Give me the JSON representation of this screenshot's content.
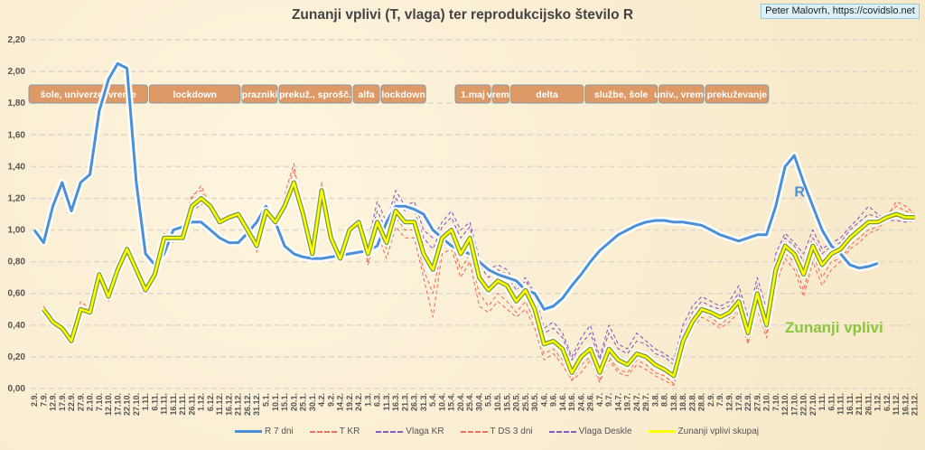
{
  "credit": "Peter Malovrh, https://covidslo.net",
  "chart_data": {
    "type": "line",
    "title": "Zunanji vplivi (T, vlaga) ter reprodukcijsko število R",
    "ylim": [
      0,
      2.2
    ],
    "yticks": [
      "0,00",
      "0,20",
      "0,40",
      "0,60",
      "0,80",
      "1,00",
      "1,20",
      "1,40",
      "1,60",
      "1,80",
      "2,00",
      "2,20"
    ],
    "grid": true,
    "legend_placement": "bottom",
    "categories": [
      "2.9.",
      "7.9.",
      "12.9.",
      "17.9.",
      "22.9.",
      "27.9.",
      "2.10.",
      "7.10.",
      "12.10.",
      "17.10.",
      "22.10.",
      "27.10.",
      "1.11.",
      "6.11.",
      "11.11.",
      "16.11.",
      "21.11.",
      "26.11.",
      "1.12.",
      "6.12.",
      "11.12.",
      "16.12.",
      "21.12.",
      "26.12.",
      "31.12.",
      "5.1.",
      "10.1.",
      "15.1.",
      "20.1.",
      "25.1.",
      "30.1.",
      "4.2.",
      "9.2.",
      "14.2.",
      "19.2.",
      "24.2.",
      "1.3.",
      "6.3.",
      "11.3.",
      "16.3.",
      "21.3.",
      "26.3.",
      "31.3.",
      "5.4.",
      "10.4.",
      "15.4.",
      "20.4.",
      "25.4.",
      "30.4.",
      "5.5.",
      "10.5.",
      "15.5.",
      "20.5.",
      "25.5.",
      "30.5.",
      "4.6.",
      "9.6.",
      "14.6.",
      "19.6.",
      "24.6.",
      "29.6.",
      "4.7.",
      "9.7.",
      "14.7.",
      "19.7.",
      "24.7.",
      "29.7.",
      "3.8.",
      "8.8.",
      "13.8.",
      "18.8.",
      "23.8.",
      "28.8.",
      "2.9.",
      "7.9.",
      "12.9.",
      "17.9.",
      "22.9.",
      "27.9.",
      "2.10.",
      "7.10.",
      "12.10.",
      "17.10.",
      "22.10.",
      "27.10.",
      "1.11.",
      "6.11.",
      "11.11.",
      "16.11.",
      "21.11.",
      "26.11.",
      "1.12.",
      "6.12.",
      "11.12.",
      "16.12.",
      "21.12."
    ],
    "series": [
      {
        "name": "R 7 dni",
        "color": "#4a90d9",
        "style": "solid",
        "values": [
          1.0,
          0.92,
          1.15,
          1.3,
          1.12,
          1.3,
          1.35,
          1.75,
          1.95,
          2.05,
          2.02,
          1.3,
          0.85,
          0.78,
          0.85,
          1.0,
          1.02,
          1.05,
          1.05,
          1.0,
          0.95,
          0.92,
          0.92,
          0.98,
          1.05,
          1.15,
          1.05,
          0.9,
          0.85,
          0.83,
          0.82,
          0.82,
          0.83,
          0.84,
          0.85,
          0.86,
          0.87,
          0.9,
          1.05,
          1.15,
          1.15,
          1.13,
          1.1,
          1.0,
          0.95,
          0.9,
          0.87,
          0.85,
          0.8,
          0.75,
          0.72,
          0.7,
          0.68,
          0.62,
          0.6,
          0.5,
          0.52,
          0.57,
          0.65,
          0.72,
          0.8,
          0.87,
          0.92,
          0.97,
          1.0,
          1.03,
          1.05,
          1.06,
          1.06,
          1.05,
          1.05,
          1.04,
          1.03,
          1.0,
          0.97,
          0.95,
          0.93,
          0.95,
          0.97,
          0.97,
          1.15,
          1.4,
          1.47,
          1.3,
          1.15,
          1.0,
          0.9,
          0.85,
          0.78,
          0.76,
          0.77,
          0.79,
          null,
          null,
          null,
          null
        ]
      },
      {
        "name": "T KR",
        "color": "#f07060",
        "style": "dash",
        "values": [
          null,
          0.52,
          0.4,
          0.35,
          0.28,
          0.55,
          0.5,
          0.75,
          0.55,
          0.78,
          0.9,
          0.72,
          0.6,
          0.75,
          0.98,
          0.92,
          1.0,
          1.22,
          1.25,
          1.12,
          1.02,
          1.1,
          1.12,
          0.98,
          0.88,
          1.15,
          1.02,
          1.2,
          1.38,
          1.05,
          0.82,
          1.28,
          0.9,
          0.8,
          1.02,
          1.08,
          0.8,
          1.02,
          0.88,
          1.08,
          1.0,
          1.0,
          0.75,
          0.6,
          0.9,
          0.92,
          0.75,
          0.85,
          0.6,
          0.52,
          0.6,
          0.55,
          0.48,
          0.55,
          0.42,
          0.22,
          0.25,
          0.18,
          0.05,
          0.15,
          0.2,
          0.05,
          0.2,
          0.12,
          0.1,
          0.18,
          0.15,
          0.1,
          0.08,
          0.03,
          0.28,
          0.4,
          0.48,
          0.45,
          0.4,
          0.45,
          0.5,
          0.3,
          0.55,
          0.35,
          0.7,
          0.85,
          0.8,
          0.62,
          0.85,
          0.7,
          0.8,
          0.82,
          0.9,
          0.95,
          1.0,
          1.02,
          1.1,
          1.15,
          1.12,
          1.1
        ]
      },
      {
        "name": "Vlaga KR",
        "color": "#8a5cc2",
        "style": "dash",
        "values": [
          null,
          0.48,
          0.44,
          0.4,
          0.32,
          0.52,
          0.5,
          0.7,
          0.6,
          0.74,
          0.86,
          0.77,
          0.64,
          0.7,
          0.94,
          0.97,
          0.93,
          1.12,
          1.18,
          1.16,
          1.07,
          1.07,
          1.08,
          1.02,
          0.92,
          1.1,
          1.07,
          1.12,
          1.25,
          1.12,
          0.88,
          1.22,
          0.98,
          0.84,
          0.98,
          1.05,
          0.9,
          1.12,
          1.0,
          1.2,
          1.12,
          1.12,
          0.95,
          0.88,
          1.02,
          1.08,
          0.95,
          1.02,
          0.78,
          0.7,
          0.75,
          0.72,
          0.62,
          0.68,
          0.58,
          0.35,
          0.38,
          0.32,
          0.18,
          0.28,
          0.35,
          0.18,
          0.35,
          0.25,
          0.22,
          0.3,
          0.28,
          0.22,
          0.2,
          0.15,
          0.35,
          0.48,
          0.55,
          0.52,
          0.5,
          0.52,
          0.6,
          0.42,
          0.65,
          0.48,
          0.8,
          0.95,
          0.9,
          0.8,
          0.95,
          0.85,
          0.9,
          0.92,
          1.0,
          1.05,
          1.1,
          1.08,
          1.08,
          1.08,
          1.06,
          1.06
        ]
      },
      {
        "name": "T DS 3 dni",
        "color": "#f07060",
        "style": "dash",
        "values": [
          null,
          0.5,
          0.4,
          0.36,
          0.3,
          0.52,
          0.46,
          0.74,
          0.56,
          0.76,
          0.9,
          0.74,
          0.6,
          0.74,
          0.96,
          0.94,
          0.98,
          1.2,
          1.28,
          1.14,
          1.04,
          1.1,
          1.12,
          0.98,
          0.86,
          1.14,
          1.04,
          1.22,
          1.42,
          1.08,
          0.8,
          1.3,
          0.92,
          0.8,
          1.0,
          1.06,
          0.78,
          0.98,
          0.82,
          1.02,
          0.95,
          0.95,
          0.7,
          0.45,
          0.85,
          0.88,
          0.7,
          0.8,
          0.52,
          0.48,
          0.55,
          0.5,
          0.45,
          0.5,
          0.38,
          0.18,
          0.22,
          0.15,
          0.05,
          0.1,
          0.18,
          0.04,
          0.18,
          0.1,
          0.08,
          0.15,
          0.12,
          0.08,
          0.05,
          0.02,
          0.25,
          0.38,
          0.45,
          0.42,
          0.38,
          0.42,
          0.48,
          0.28,
          0.5,
          0.32,
          0.65,
          0.82,
          0.75,
          0.58,
          0.8,
          0.65,
          0.75,
          0.8,
          0.88,
          0.92,
          0.98,
          1.0,
          1.08,
          1.18,
          1.15,
          1.1
        ]
      },
      {
        "name": "Vlaga Deskle",
        "color": "#8a5cc2",
        "style": "dash",
        "values": [
          null,
          0.5,
          0.43,
          0.4,
          0.31,
          0.5,
          0.5,
          0.7,
          0.6,
          0.73,
          0.86,
          0.78,
          0.65,
          0.7,
          0.93,
          0.96,
          0.94,
          1.12,
          1.16,
          1.17,
          1.08,
          1.06,
          1.08,
          1.03,
          0.93,
          1.1,
          1.08,
          1.12,
          1.24,
          1.14,
          0.9,
          1.2,
          1.0,
          0.86,
          0.98,
          1.04,
          0.92,
          1.18,
          1.05,
          1.25,
          1.15,
          1.18,
          1.0,
          0.95,
          1.05,
          1.12,
          1.0,
          1.05,
          0.82,
          0.75,
          0.78,
          0.75,
          0.65,
          0.7,
          0.6,
          0.38,
          0.42,
          0.35,
          0.2,
          0.32,
          0.4,
          0.2,
          0.4,
          0.28,
          0.25,
          0.35,
          0.3,
          0.25,
          0.22,
          0.18,
          0.4,
          0.52,
          0.58,
          0.55,
          0.52,
          0.55,
          0.65,
          0.45,
          0.7,
          0.5,
          0.85,
          0.98,
          0.92,
          0.85,
          1.0,
          0.88,
          0.92,
          0.95,
          1.02,
          1.08,
          1.15,
          1.1,
          1.06,
          1.06,
          1.05,
          1.06
        ]
      },
      {
        "name": "Zunanji vplivi skupaj",
        "color": "#ffff00",
        "style": "solid",
        "values": [
          null,
          0.5,
          0.42,
          0.38,
          0.3,
          0.5,
          0.48,
          0.72,
          0.58,
          0.75,
          0.88,
          0.75,
          0.62,
          0.72,
          0.95,
          0.95,
          0.95,
          1.15,
          1.2,
          1.15,
          1.05,
          1.08,
          1.1,
          1.0,
          0.9,
          1.12,
          1.05,
          1.15,
          1.3,
          1.1,
          0.85,
          1.25,
          0.95,
          0.82,
          1.0,
          1.05,
          0.85,
          1.05,
          0.92,
          1.12,
          1.05,
          1.05,
          0.85,
          0.75,
          0.95,
          1.0,
          0.85,
          0.95,
          0.7,
          0.62,
          0.68,
          0.65,
          0.55,
          0.62,
          0.5,
          0.28,
          0.3,
          0.25,
          0.1,
          0.2,
          0.25,
          0.1,
          0.25,
          0.18,
          0.15,
          0.22,
          0.2,
          0.15,
          0.12,
          0.08,
          0.3,
          0.42,
          0.5,
          0.48,
          0.45,
          0.48,
          0.55,
          0.35,
          0.6,
          0.4,
          0.75,
          0.9,
          0.85,
          0.72,
          0.9,
          0.78,
          0.85,
          0.88,
          0.95,
          1.0,
          1.05,
          1.05,
          1.08,
          1.1,
          1.08,
          1.08
        ]
      }
    ],
    "annotations": [
      {
        "text": "R",
        "color": "#4a90d9",
        "x": "17.10.",
        "y": 1.2
      },
      {
        "text": "Zunanji vplivi",
        "color": "#8cc63f",
        "x": "12.10.",
        "y": 0.4
      }
    ],
    "period_labels": [
      {
        "text": "šole, univerze, vreme",
        "from": "2.9.",
        "to": "6.11."
      },
      {
        "text": "lockdown",
        "from": "6.11.",
        "to": "26.12."
      },
      {
        "text": "prazniki",
        "from": "26.12.",
        "to": "15.1."
      },
      {
        "text": "prekuž., sprošč.",
        "from": "15.1.",
        "to": "24.2."
      },
      {
        "text": "alfa",
        "from": "24.2.",
        "to": "11.3."
      },
      {
        "text": "lockdown",
        "from": "11.3.",
        "to": "5.4."
      },
      {
        "text": "1.maj",
        "from": "20.4.",
        "to": "10.5."
      },
      {
        "text": "vreme",
        "from": "10.5.",
        "to": "20.5."
      },
      {
        "text": "delta",
        "from": "20.5.",
        "to": "29.6."
      },
      {
        "text": "službe, šole",
        "from": "29.6.",
        "to": "8.8."
      },
      {
        "text": "univ., vreme",
        "from": "8.8.",
        "to": "2.9."
      },
      {
        "text": "prekuževanje",
        "from": "2.9.",
        "to": "7.10."
      }
    ]
  }
}
